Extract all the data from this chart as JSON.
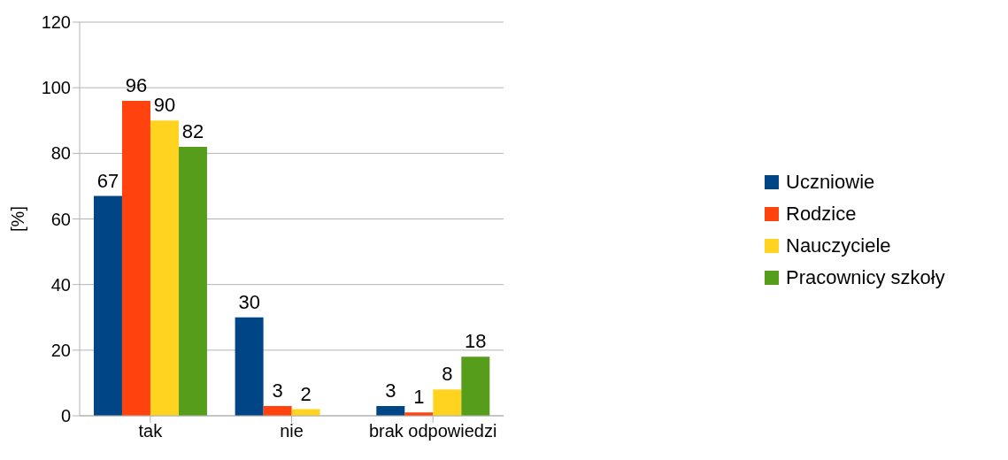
{
  "chart_data": {
    "type": "bar",
    "ylabel": "[%]",
    "categories": [
      "tak",
      "nie",
      "brak odpowiedzi"
    ],
    "series": [
      {
        "name": "Uczniowie",
        "color": "#004586",
        "values": [
          67,
          30,
          3
        ]
      },
      {
        "name": "Rodzice",
        "color": "#ff420e",
        "values": [
          96,
          3,
          1
        ]
      },
      {
        "name": "Nauczyciele",
        "color": "#ffd320",
        "values": [
          90,
          2,
          8
        ]
      },
      {
        "name": "Pracownicy szkoły",
        "color": "#579d1c",
        "values": [
          82,
          null,
          18
        ]
      }
    ],
    "ylim": [
      0,
      120
    ],
    "yticks": [
      0,
      20,
      40,
      60,
      80,
      100,
      120
    ],
    "grid": "y",
    "legend": "right",
    "data_labels": true
  }
}
